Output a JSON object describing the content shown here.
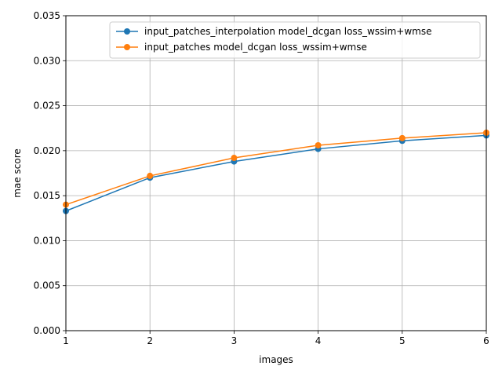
{
  "chart_data": {
    "type": "line",
    "title": "",
    "xlabel": "images",
    "ylabel": "mae score",
    "x": [
      1,
      2,
      3,
      4,
      5,
      6
    ],
    "xlim": [
      1,
      6
    ],
    "ylim": [
      0,
      0.035
    ],
    "x_ticks": [
      "1",
      "2",
      "3",
      "4",
      "5",
      "6"
    ],
    "y_ticks": [
      "0.000",
      "0.005",
      "0.010",
      "0.015",
      "0.020",
      "0.025",
      "0.030",
      "0.035"
    ],
    "grid": true,
    "legend_position": "top-right",
    "series": [
      {
        "name": "input_patches_interpolation model_dcgan loss_wssim+wmse",
        "color": "#1f77b4",
        "values": [
          0.0133,
          0.017,
          0.0188,
          0.0202,
          0.0211,
          0.0217
        ]
      },
      {
        "name": "input_patches model_dcgan loss_wssim+wmse",
        "color": "#ff7f0e",
        "values": [
          0.014,
          0.0172,
          0.0192,
          0.0206,
          0.0214,
          0.022
        ]
      }
    ]
  }
}
